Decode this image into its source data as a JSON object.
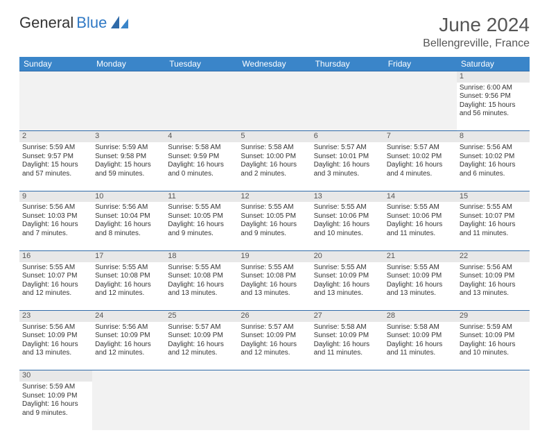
{
  "brand": {
    "part1": "General",
    "part2": "Blue"
  },
  "title": "June 2024",
  "location": "Bellengreville, France",
  "colors": {
    "header_bg": "#3a85c9",
    "header_text": "#ffffff",
    "daynum_bg": "#e8e8e8",
    "row_divider": "#2f6aa8",
    "brand_blue": "#2f78c4",
    "text": "#333333",
    "muted": "#555555",
    "empty_bg": "#f2f2f2",
    "page_bg": "#ffffff"
  },
  "weekdays": [
    "Sunday",
    "Monday",
    "Tuesday",
    "Wednesday",
    "Thursday",
    "Friday",
    "Saturday"
  ],
  "weeks": [
    [
      null,
      null,
      null,
      null,
      null,
      null,
      {
        "n": "1",
        "sr": "Sunrise: 6:00 AM",
        "ss": "Sunset: 9:56 PM",
        "d1": "Daylight: 15 hours",
        "d2": "and 56 minutes."
      }
    ],
    [
      {
        "n": "2",
        "sr": "Sunrise: 5:59 AM",
        "ss": "Sunset: 9:57 PM",
        "d1": "Daylight: 15 hours",
        "d2": "and 57 minutes."
      },
      {
        "n": "3",
        "sr": "Sunrise: 5:59 AM",
        "ss": "Sunset: 9:58 PM",
        "d1": "Daylight: 15 hours",
        "d2": "and 59 minutes."
      },
      {
        "n": "4",
        "sr": "Sunrise: 5:58 AM",
        "ss": "Sunset: 9:59 PM",
        "d1": "Daylight: 16 hours",
        "d2": "and 0 minutes."
      },
      {
        "n": "5",
        "sr": "Sunrise: 5:58 AM",
        "ss": "Sunset: 10:00 PM",
        "d1": "Daylight: 16 hours",
        "d2": "and 2 minutes."
      },
      {
        "n": "6",
        "sr": "Sunrise: 5:57 AM",
        "ss": "Sunset: 10:01 PM",
        "d1": "Daylight: 16 hours",
        "d2": "and 3 minutes."
      },
      {
        "n": "7",
        "sr": "Sunrise: 5:57 AM",
        "ss": "Sunset: 10:02 PM",
        "d1": "Daylight: 16 hours",
        "d2": "and 4 minutes."
      },
      {
        "n": "8",
        "sr": "Sunrise: 5:56 AM",
        "ss": "Sunset: 10:02 PM",
        "d1": "Daylight: 16 hours",
        "d2": "and 6 minutes."
      }
    ],
    [
      {
        "n": "9",
        "sr": "Sunrise: 5:56 AM",
        "ss": "Sunset: 10:03 PM",
        "d1": "Daylight: 16 hours",
        "d2": "and 7 minutes."
      },
      {
        "n": "10",
        "sr": "Sunrise: 5:56 AM",
        "ss": "Sunset: 10:04 PM",
        "d1": "Daylight: 16 hours",
        "d2": "and 8 minutes."
      },
      {
        "n": "11",
        "sr": "Sunrise: 5:55 AM",
        "ss": "Sunset: 10:05 PM",
        "d1": "Daylight: 16 hours",
        "d2": "and 9 minutes."
      },
      {
        "n": "12",
        "sr": "Sunrise: 5:55 AM",
        "ss": "Sunset: 10:05 PM",
        "d1": "Daylight: 16 hours",
        "d2": "and 9 minutes."
      },
      {
        "n": "13",
        "sr": "Sunrise: 5:55 AM",
        "ss": "Sunset: 10:06 PM",
        "d1": "Daylight: 16 hours",
        "d2": "and 10 minutes."
      },
      {
        "n": "14",
        "sr": "Sunrise: 5:55 AM",
        "ss": "Sunset: 10:06 PM",
        "d1": "Daylight: 16 hours",
        "d2": "and 11 minutes."
      },
      {
        "n": "15",
        "sr": "Sunrise: 5:55 AM",
        "ss": "Sunset: 10:07 PM",
        "d1": "Daylight: 16 hours",
        "d2": "and 11 minutes."
      }
    ],
    [
      {
        "n": "16",
        "sr": "Sunrise: 5:55 AM",
        "ss": "Sunset: 10:07 PM",
        "d1": "Daylight: 16 hours",
        "d2": "and 12 minutes."
      },
      {
        "n": "17",
        "sr": "Sunrise: 5:55 AM",
        "ss": "Sunset: 10:08 PM",
        "d1": "Daylight: 16 hours",
        "d2": "and 12 minutes."
      },
      {
        "n": "18",
        "sr": "Sunrise: 5:55 AM",
        "ss": "Sunset: 10:08 PM",
        "d1": "Daylight: 16 hours",
        "d2": "and 13 minutes."
      },
      {
        "n": "19",
        "sr": "Sunrise: 5:55 AM",
        "ss": "Sunset: 10:08 PM",
        "d1": "Daylight: 16 hours",
        "d2": "and 13 minutes."
      },
      {
        "n": "20",
        "sr": "Sunrise: 5:55 AM",
        "ss": "Sunset: 10:09 PM",
        "d1": "Daylight: 16 hours",
        "d2": "and 13 minutes."
      },
      {
        "n": "21",
        "sr": "Sunrise: 5:55 AM",
        "ss": "Sunset: 10:09 PM",
        "d1": "Daylight: 16 hours",
        "d2": "and 13 minutes."
      },
      {
        "n": "22",
        "sr": "Sunrise: 5:56 AM",
        "ss": "Sunset: 10:09 PM",
        "d1": "Daylight: 16 hours",
        "d2": "and 13 minutes."
      }
    ],
    [
      {
        "n": "23",
        "sr": "Sunrise: 5:56 AM",
        "ss": "Sunset: 10:09 PM",
        "d1": "Daylight: 16 hours",
        "d2": "and 13 minutes."
      },
      {
        "n": "24",
        "sr": "Sunrise: 5:56 AM",
        "ss": "Sunset: 10:09 PM",
        "d1": "Daylight: 16 hours",
        "d2": "and 12 minutes."
      },
      {
        "n": "25",
        "sr": "Sunrise: 5:57 AM",
        "ss": "Sunset: 10:09 PM",
        "d1": "Daylight: 16 hours",
        "d2": "and 12 minutes."
      },
      {
        "n": "26",
        "sr": "Sunrise: 5:57 AM",
        "ss": "Sunset: 10:09 PM",
        "d1": "Daylight: 16 hours",
        "d2": "and 12 minutes."
      },
      {
        "n": "27",
        "sr": "Sunrise: 5:58 AM",
        "ss": "Sunset: 10:09 PM",
        "d1": "Daylight: 16 hours",
        "d2": "and 11 minutes."
      },
      {
        "n": "28",
        "sr": "Sunrise: 5:58 AM",
        "ss": "Sunset: 10:09 PM",
        "d1": "Daylight: 16 hours",
        "d2": "and 11 minutes."
      },
      {
        "n": "29",
        "sr": "Sunrise: 5:59 AM",
        "ss": "Sunset: 10:09 PM",
        "d1": "Daylight: 16 hours",
        "d2": "and 10 minutes."
      }
    ],
    [
      {
        "n": "30",
        "sr": "Sunrise: 5:59 AM",
        "ss": "Sunset: 10:09 PM",
        "d1": "Daylight: 16 hours",
        "d2": "and 9 minutes."
      },
      null,
      null,
      null,
      null,
      null,
      null
    ]
  ]
}
